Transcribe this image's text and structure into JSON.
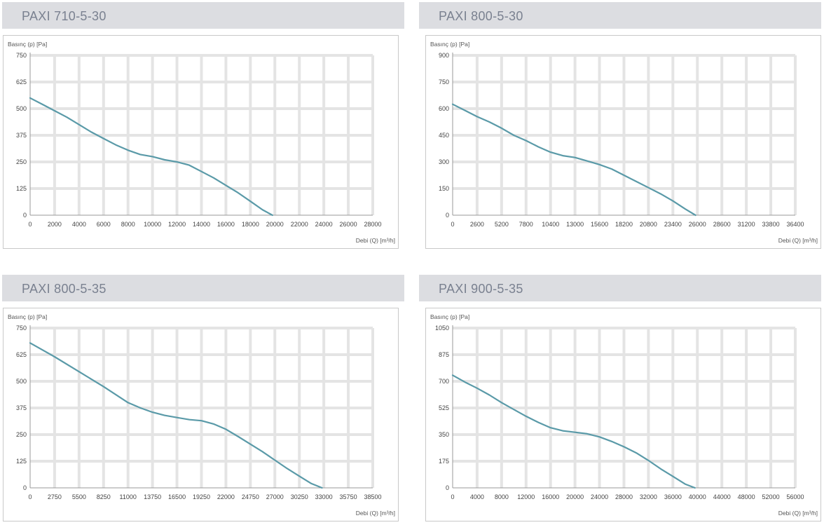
{
  "theme": {
    "curve_color": "#5a9aa8",
    "grid_color": "#e4e4e4",
    "header_bg": "#dcdde1",
    "title_color": "#7a8190"
  },
  "chart_data": [
    {
      "type": "line",
      "title": "PAXI 710-5-30",
      "ylabel": "Basınç (p) [Pa]",
      "xlabel": "Debi (Q) [m³/h]",
      "xticks": [
        "0",
        "2000",
        "4000",
        "6000",
        "8000",
        "10000",
        "12000",
        "14000",
        "16000",
        "18000",
        "20000",
        "22000",
        "24000",
        "26000",
        "28000"
      ],
      "yticks": [
        "750",
        "625",
        "500",
        "375",
        "250",
        "125",
        "0"
      ],
      "xlim": [
        0,
        28000
      ],
      "ylim": [
        0,
        750
      ],
      "series": [
        {
          "x": [
            0,
            1000,
            2000,
            3000,
            4000,
            5000,
            6000,
            7000,
            8000,
            9000,
            10000,
            11000,
            12000,
            13000,
            14000,
            15000,
            16000,
            17000,
            18000,
            19000,
            19800
          ],
          "y": [
            550,
            520,
            490,
            460,
            425,
            390,
            360,
            330,
            305,
            285,
            275,
            260,
            250,
            235,
            205,
            175,
            140,
            105,
            65,
            25,
            0
          ]
        }
      ]
    },
    {
      "type": "line",
      "title": "PAXI 800-5-30",
      "ylabel": "Basınç (p) [Pa]",
      "xlabel": "Debi (Q) [m³/h]",
      "xticks": [
        "0",
        "2600",
        "5200",
        "7800",
        "10400",
        "13000",
        "15600",
        "18200",
        "20800",
        "23400",
        "26000",
        "28600",
        "31200",
        "33800",
        "36400"
      ],
      "yticks": [
        "900",
        "750",
        "600",
        "450",
        "300",
        "150",
        "0"
      ],
      "xlim": [
        0,
        36400
      ],
      "ylim": [
        0,
        900
      ],
      "series": [
        {
          "x": [
            0,
            1300,
            2600,
            3900,
            5200,
            6500,
            7800,
            9100,
            10400,
            11700,
            13000,
            14300,
            15600,
            16900,
            18200,
            19500,
            20800,
            22100,
            23400,
            24700,
            25800
          ],
          "y": [
            625,
            590,
            555,
            525,
            490,
            450,
            420,
            385,
            355,
            335,
            325,
            305,
            285,
            260,
            225,
            190,
            155,
            120,
            80,
            35,
            0
          ]
        }
      ]
    },
    {
      "type": "line",
      "title": "PAXI 800-5-35",
      "ylabel": "Basınç (p) [Pa]",
      "xlabel": "Debi (Q) [m³/h]",
      "xticks": [
        "0",
        "2750",
        "5500",
        "8250",
        "11000",
        "13750",
        "16500",
        "19250",
        "22000",
        "24750",
        "27000",
        "30250",
        "33000",
        "35750",
        "38500"
      ],
      "yticks": [
        "750",
        "625",
        "500",
        "375",
        "250",
        "125",
        "0"
      ],
      "xlim": [
        0,
        38500
      ],
      "ylim": [
        0,
        750
      ],
      "series": [
        {
          "x": [
            0,
            2750,
            5500,
            8250,
            11000,
            12400,
            13750,
            15100,
            16500,
            17900,
            19250,
            20600,
            22000,
            23400,
            24750,
            26100,
            27500,
            28900,
            30250,
            31600,
            32800
          ],
          "y": [
            680,
            615,
            545,
            475,
            400,
            375,
            355,
            340,
            330,
            320,
            315,
            300,
            275,
            240,
            205,
            170,
            130,
            90,
            55,
            20,
            0
          ]
        }
      ]
    },
    {
      "type": "line",
      "title": "PAXI 900-5-35",
      "ylabel": "Basınç (p) [Pa]",
      "xlabel": "Debi (Q) [m³/h]",
      "xticks": [
        "0",
        "4000",
        "8000",
        "12000",
        "16000",
        "20000",
        "24000",
        "28000",
        "32000",
        "36000",
        "40000",
        "44000",
        "48000",
        "52000",
        "56000"
      ],
      "yticks": [
        "1050",
        "875",
        "700",
        "525",
        "350",
        "175",
        "0"
      ],
      "xlim": [
        0,
        56000
      ],
      "ylim": [
        0,
        1050
      ],
      "series": [
        {
          "x": [
            0,
            2000,
            4000,
            6000,
            8000,
            10000,
            12000,
            14000,
            16000,
            18000,
            20000,
            22000,
            24000,
            26000,
            28000,
            30000,
            32000,
            34000,
            36000,
            38000,
            39600
          ],
          "y": [
            740,
            695,
            655,
            610,
            560,
            515,
            470,
            430,
            395,
            375,
            365,
            355,
            335,
            305,
            270,
            230,
            180,
            125,
            75,
            25,
            0
          ]
        }
      ]
    }
  ]
}
